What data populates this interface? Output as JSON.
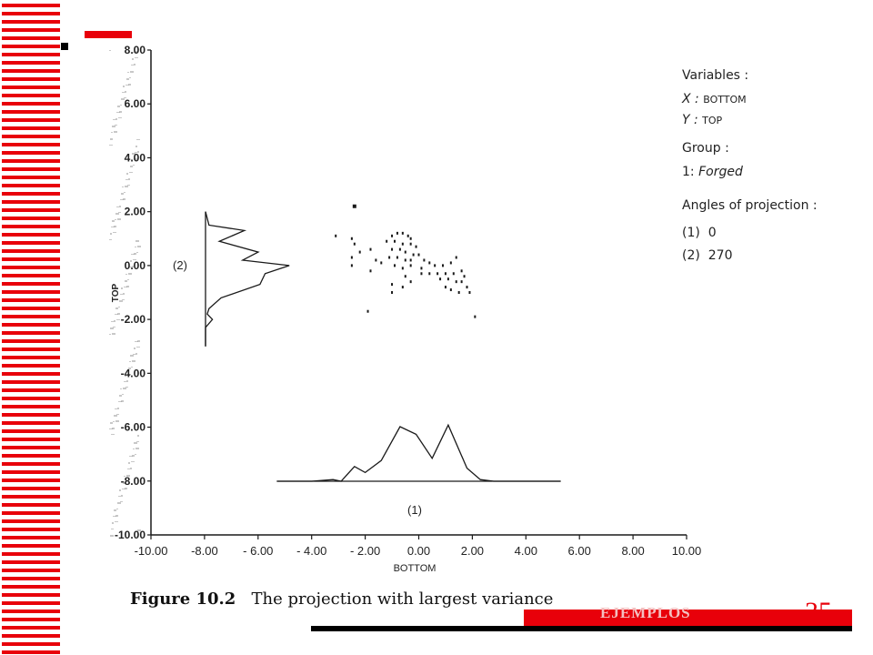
{
  "chart_data": {
    "type": "scatter",
    "title": "",
    "xlabel": "BOTTOM",
    "ylabel": "TOP",
    "xlim": [
      -10,
      10
    ],
    "ylim": [
      -10,
      8
    ],
    "x_ticks": [
      "-10.00",
      "-8.00",
      "- 6.00",
      "- 4.00",
      "- 2.00",
      "0.00",
      "2.00",
      "4.00",
      "6.00",
      "8.00",
      "10.00"
    ],
    "y_ticks": [
      "8.00",
      "6.00",
      "4.00",
      "2.00",
      "0.00",
      "-2.00",
      "-4.00",
      "-6.00",
      "-8.00",
      "-10.00"
    ],
    "points": [
      [
        -2.4,
        2.2
      ],
      [
        -3.1,
        1.1
      ],
      [
        -2.5,
        1.0
      ],
      [
        -2.4,
        0.8
      ],
      [
        -2.2,
        0.5
      ],
      [
        -1.8,
        0.6
      ],
      [
        -2.5,
        0.3
      ],
      [
        -2.5,
        0.0
      ],
      [
        -1.6,
        0.2
      ],
      [
        -1.4,
        0.1
      ],
      [
        -1.8,
        -0.2
      ],
      [
        -1.0,
        1.1
      ],
      [
        -0.8,
        1.2
      ],
      [
        -0.6,
        1.2
      ],
      [
        -0.4,
        1.1
      ],
      [
        -0.3,
        1.0
      ],
      [
        -1.2,
        0.9
      ],
      [
        -0.9,
        0.9
      ],
      [
        -0.6,
        0.8
      ],
      [
        -0.3,
        0.8
      ],
      [
        -0.1,
        0.7
      ],
      [
        -1.0,
        0.6
      ],
      [
        -0.7,
        0.6
      ],
      [
        -0.5,
        0.5
      ],
      [
        -0.2,
        0.4
      ],
      [
        0.0,
        0.4
      ],
      [
        -1.1,
        0.3
      ],
      [
        -0.8,
        0.3
      ],
      [
        -0.5,
        0.2
      ],
      [
        -0.3,
        0.2
      ],
      [
        0.2,
        0.2
      ],
      [
        -0.9,
        0.0
      ],
      [
        -0.6,
        -0.1
      ],
      [
        -0.3,
        0.0
      ],
      [
        0.1,
        -0.1
      ],
      [
        0.4,
        0.1
      ],
      [
        0.6,
        0.0
      ],
      [
        0.9,
        0.0
      ],
      [
        1.2,
        0.1
      ],
      [
        -0.5,
        -0.4
      ],
      [
        0.1,
        -0.3
      ],
      [
        0.4,
        -0.3
      ],
      [
        0.7,
        -0.3
      ],
      [
        1.0,
        -0.3
      ],
      [
        1.3,
        -0.3
      ],
      [
        0.8,
        -0.5
      ],
      [
        1.1,
        -0.5
      ],
      [
        1.4,
        -0.6
      ],
      [
        1.6,
        -0.6
      ],
      [
        1.7,
        -0.4
      ],
      [
        1.8,
        -0.8
      ],
      [
        -1.0,
        -0.7
      ],
      [
        -0.6,
        -0.8
      ],
      [
        -0.3,
        -0.6
      ],
      [
        1.0,
        -0.8
      ],
      [
        1.2,
        -0.9
      ],
      [
        1.5,
        -1.0
      ],
      [
        1.9,
        -1.0
      ],
      [
        1.6,
        -0.2
      ],
      [
        1.4,
        0.3
      ],
      [
        -1.0,
        -1.0
      ],
      [
        -1.9,
        -1.7
      ],
      [
        2.1,
        -1.9
      ]
    ],
    "projection_1": {
      "label": "(1)",
      "x": [
        -5.3,
        -4.0,
        -3.2,
        -2.9,
        -2.4,
        -2.0,
        -1.4,
        -0.7,
        -0.1,
        0.5,
        1.1,
        1.8,
        2.3,
        2.8,
        3.3,
        5.3
      ],
      "density": [
        0,
        0,
        0.03,
        0,
        0.27,
        0.16,
        0.38,
        1.0,
        0.86,
        0.42,
        1.03,
        0.24,
        0.03,
        0,
        0,
        0
      ]
    },
    "projection_2": {
      "label": "(2)",
      "y": [
        2.0,
        1.5,
        1.3,
        0.9,
        0.5,
        0.2,
        0.0,
        -0.3,
        -0.7,
        -1.2,
        -1.6,
        -1.8,
        -2.0,
        -2.3,
        -3.0
      ],
      "density": [
        0,
        0.04,
        0.45,
        0.16,
        0.61,
        0.43,
        0.97,
        0.69,
        0.63,
        0.18,
        0.04,
        0.02,
        0.08,
        0,
        0
      ]
    }
  },
  "legend": {
    "variables_label": "Variables :",
    "x_label": "X :",
    "x_value": "BOTTOM",
    "y_label": "Y :",
    "y_value": "TOP",
    "group_label": "Group :",
    "group_num": "1:",
    "group_value": "Forged",
    "angles_label": "Angles of projection :",
    "angle1_num": "(1)",
    "angle1_value": "0",
    "angle2_num": "(2)",
    "angle2_value": "270"
  },
  "caption": {
    "fig_label": "Figure 10.2",
    "fig_text": "The projection with largest variance"
  },
  "footer": {
    "section_label": "EJEMPLOS",
    "page_number": "35"
  },
  "colors": {
    "accent_red": "#e8000a",
    "ink": "#1a1a1a"
  }
}
